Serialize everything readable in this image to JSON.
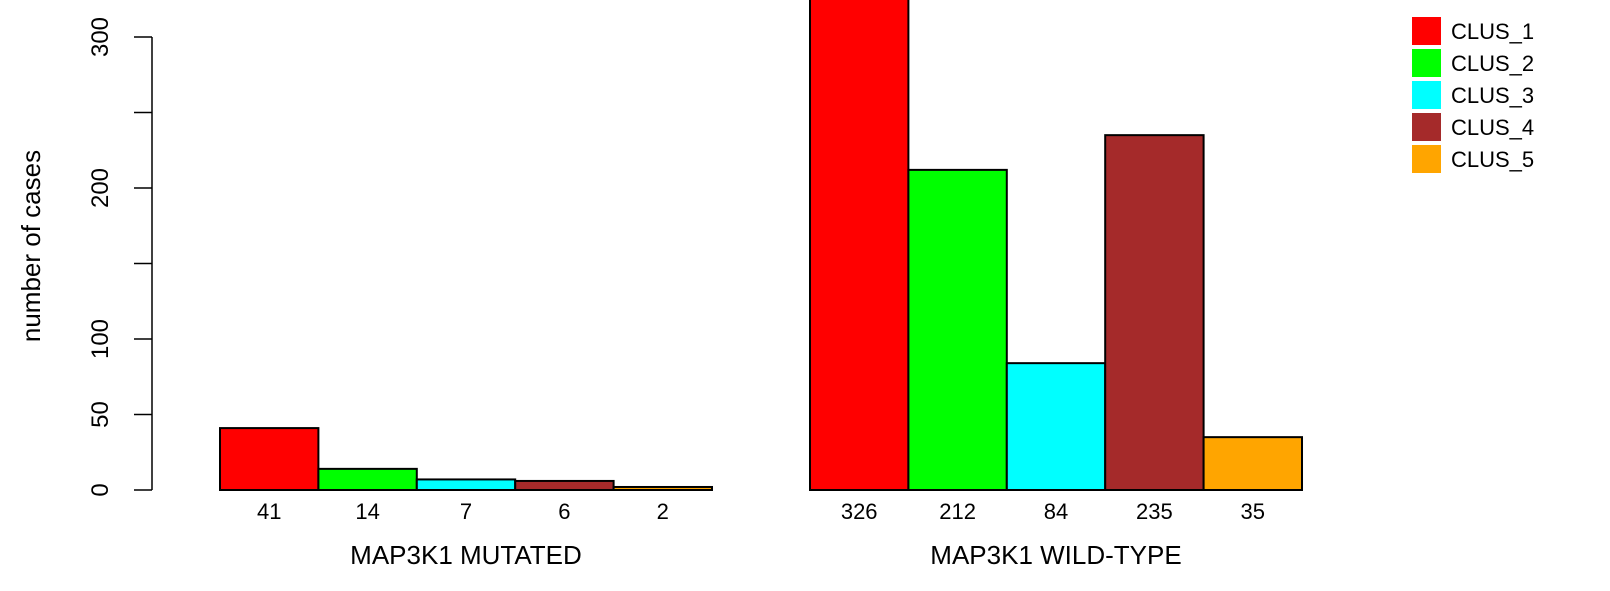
{
  "chart_data": {
    "type": "bar",
    "title": "",
    "ylabel": "number of cases",
    "ylim": [
      0,
      326
    ],
    "yticks": [
      0,
      50,
      100,
      200,
      300
    ],
    "yticks_minor": [
      150,
      250
    ],
    "legend_position": "top-right",
    "series": [
      {
        "name": "CLUS_1",
        "color": "#ff0000"
      },
      {
        "name": "CLUS_2",
        "color": "#00ff00"
      },
      {
        "name": "CLUS_3",
        "color": "#00ffff"
      },
      {
        "name": "CLUS_4",
        "color": "#a52a2a"
      },
      {
        "name": "CLUS_5",
        "color": "#ffa500"
      }
    ],
    "groups": [
      {
        "label": "MAP3K1 MUTATED",
        "values": [
          41,
          14,
          7,
          6,
          2
        ],
        "value_labels": [
          "41",
          "14",
          "7",
          "6",
          "2"
        ]
      },
      {
        "label": "MAP3K1 WILD-TYPE",
        "values": [
          326,
          212,
          84,
          235,
          35
        ],
        "value_labels": [
          "326",
          "212",
          "84",
          "235",
          "35"
        ]
      }
    ]
  }
}
